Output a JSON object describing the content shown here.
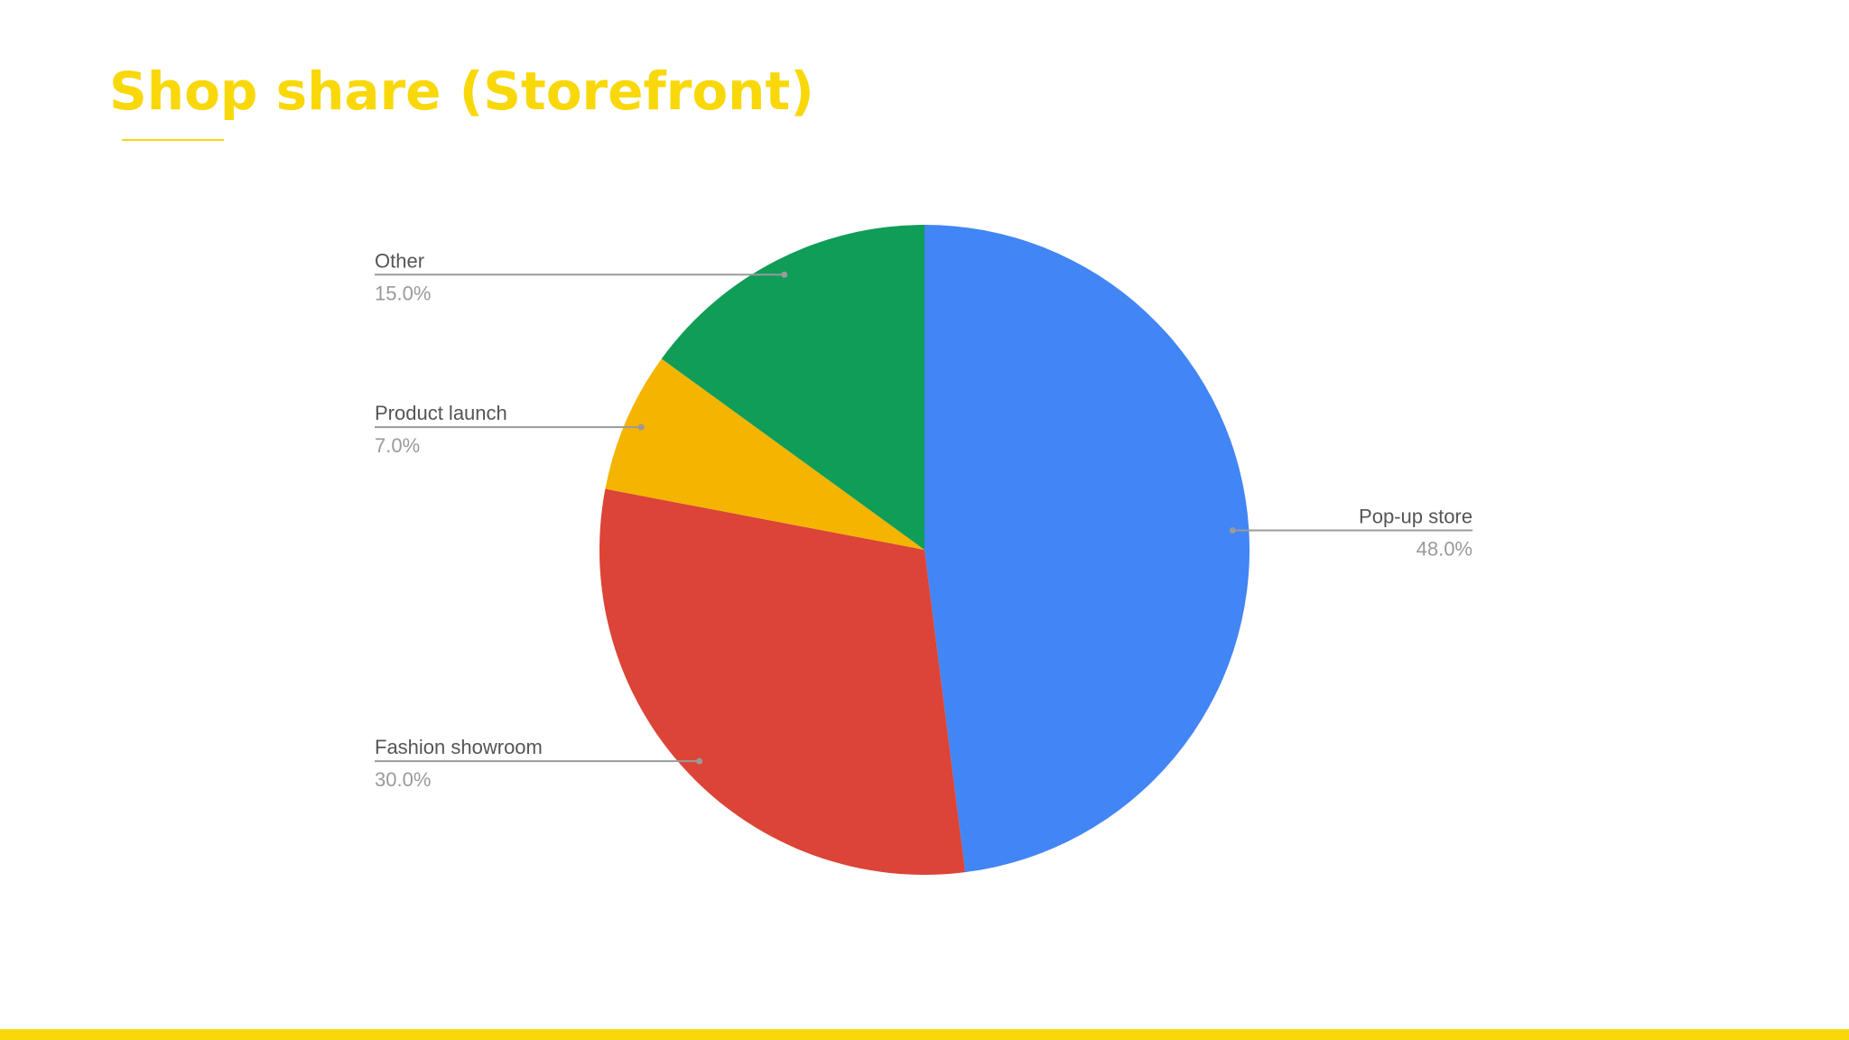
{
  "chart_data": {
    "type": "pie",
    "title": "Shop share (Storefront)",
    "categories": [
      "Pop-up store",
      "Fashion showroom",
      "Product launch",
      "Other"
    ],
    "values": [
      48,
      30,
      7,
      15
    ],
    "value_labels": [
      "48.0%",
      "30.0%",
      "7.0%",
      "15.0%"
    ],
    "colors": [
      "#4285f4",
      "#db4437",
      "#f4b400",
      "#0f9d58"
    ]
  }
}
